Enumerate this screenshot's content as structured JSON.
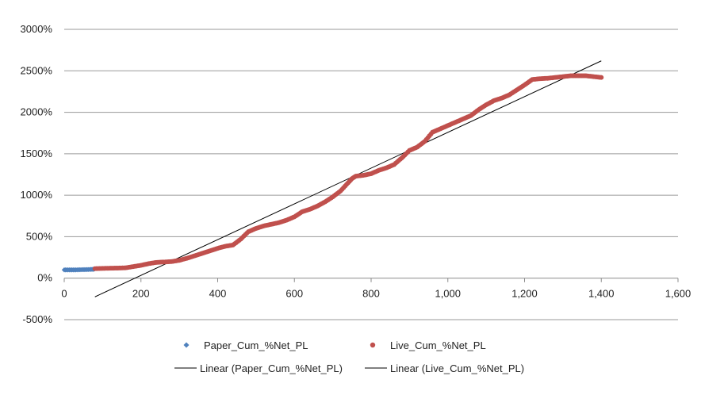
{
  "chart_data": {
    "type": "scatter",
    "title": "",
    "xlabel": "",
    "ylabel": "",
    "xlim": [
      0,
      1600
    ],
    "ylim": [
      -500,
      3000
    ],
    "x_ticks": [
      0,
      200,
      400,
      600,
      800,
      1000,
      1200,
      1400,
      1600
    ],
    "x_tick_labels": [
      "0",
      "200",
      "400",
      "600",
      "800",
      "1,000",
      "1,200",
      "1,400",
      "1,600"
    ],
    "y_ticks": [
      -500,
      0,
      500,
      1000,
      1500,
      2000,
      2500,
      3000
    ],
    "y_tick_labels": [
      "-500%",
      "0%",
      "500%",
      "1000%",
      "1500%",
      "2000%",
      "2500%",
      "3000%"
    ],
    "grid": "horizontal",
    "legend_position": "bottom",
    "series": [
      {
        "name": "Paper_Cum_%Net_PL",
        "color": "#4F81BD",
        "marker": "diamond",
        "points": [
          [
            0,
            100
          ],
          [
            10,
            100
          ],
          [
            20,
            100
          ],
          [
            30,
            100
          ],
          [
            40,
            102
          ],
          [
            50,
            103
          ],
          [
            60,
            104
          ],
          [
            70,
            106
          ],
          [
            78,
            108
          ]
        ]
      },
      {
        "name": "Live_Cum_%Net_PL",
        "color": "#C0504D",
        "marker": "circle",
        "points": [
          [
            80,
            115
          ],
          [
            100,
            118
          ],
          [
            120,
            120
          ],
          [
            140,
            122
          ],
          [
            160,
            125
          ],
          [
            180,
            140
          ],
          [
            200,
            155
          ],
          [
            220,
            175
          ],
          [
            240,
            190
          ],
          [
            260,
            195
          ],
          [
            280,
            200
          ],
          [
            300,
            215
          ],
          [
            320,
            240
          ],
          [
            340,
            270
          ],
          [
            360,
            300
          ],
          [
            380,
            330
          ],
          [
            400,
            360
          ],
          [
            420,
            385
          ],
          [
            440,
            400
          ],
          [
            460,
            470
          ],
          [
            480,
            560
          ],
          [
            500,
            600
          ],
          [
            520,
            630
          ],
          [
            540,
            650
          ],
          [
            560,
            670
          ],
          [
            580,
            700
          ],
          [
            600,
            740
          ],
          [
            620,
            800
          ],
          [
            640,
            830
          ],
          [
            660,
            870
          ],
          [
            680,
            920
          ],
          [
            700,
            980
          ],
          [
            720,
            1050
          ],
          [
            740,
            1150
          ],
          [
            750,
            1200
          ],
          [
            760,
            1230
          ],
          [
            780,
            1240
          ],
          [
            800,
            1260
          ],
          [
            820,
            1300
          ],
          [
            840,
            1330
          ],
          [
            860,
            1370
          ],
          [
            880,
            1450
          ],
          [
            900,
            1540
          ],
          [
            920,
            1580
          ],
          [
            940,
            1650
          ],
          [
            960,
            1760
          ],
          [
            980,
            1800
          ],
          [
            1000,
            1840
          ],
          [
            1020,
            1880
          ],
          [
            1040,
            1920
          ],
          [
            1060,
            1960
          ],
          [
            1080,
            2030
          ],
          [
            1100,
            2090
          ],
          [
            1120,
            2140
          ],
          [
            1140,
            2170
          ],
          [
            1160,
            2210
          ],
          [
            1180,
            2270
          ],
          [
            1200,
            2330
          ],
          [
            1220,
            2395
          ],
          [
            1240,
            2405
          ],
          [
            1260,
            2410
          ],
          [
            1280,
            2420
          ],
          [
            1300,
            2430
          ],
          [
            1320,
            2440
          ],
          [
            1340,
            2440
          ],
          [
            1360,
            2440
          ],
          [
            1380,
            2430
          ],
          [
            1400,
            2420
          ]
        ]
      }
    ],
    "trendlines": [
      {
        "name": "Linear (Paper_Cum_%Net_PL)",
        "color": "#000000",
        "from": [
          0,
          96
        ],
        "to": [
          78,
          104
        ]
      },
      {
        "name": "Linear (Live_Cum_%Net_PL)",
        "color": "#000000",
        "from": [
          80,
          -225
        ],
        "to": [
          1400,
          2620
        ]
      }
    ]
  }
}
